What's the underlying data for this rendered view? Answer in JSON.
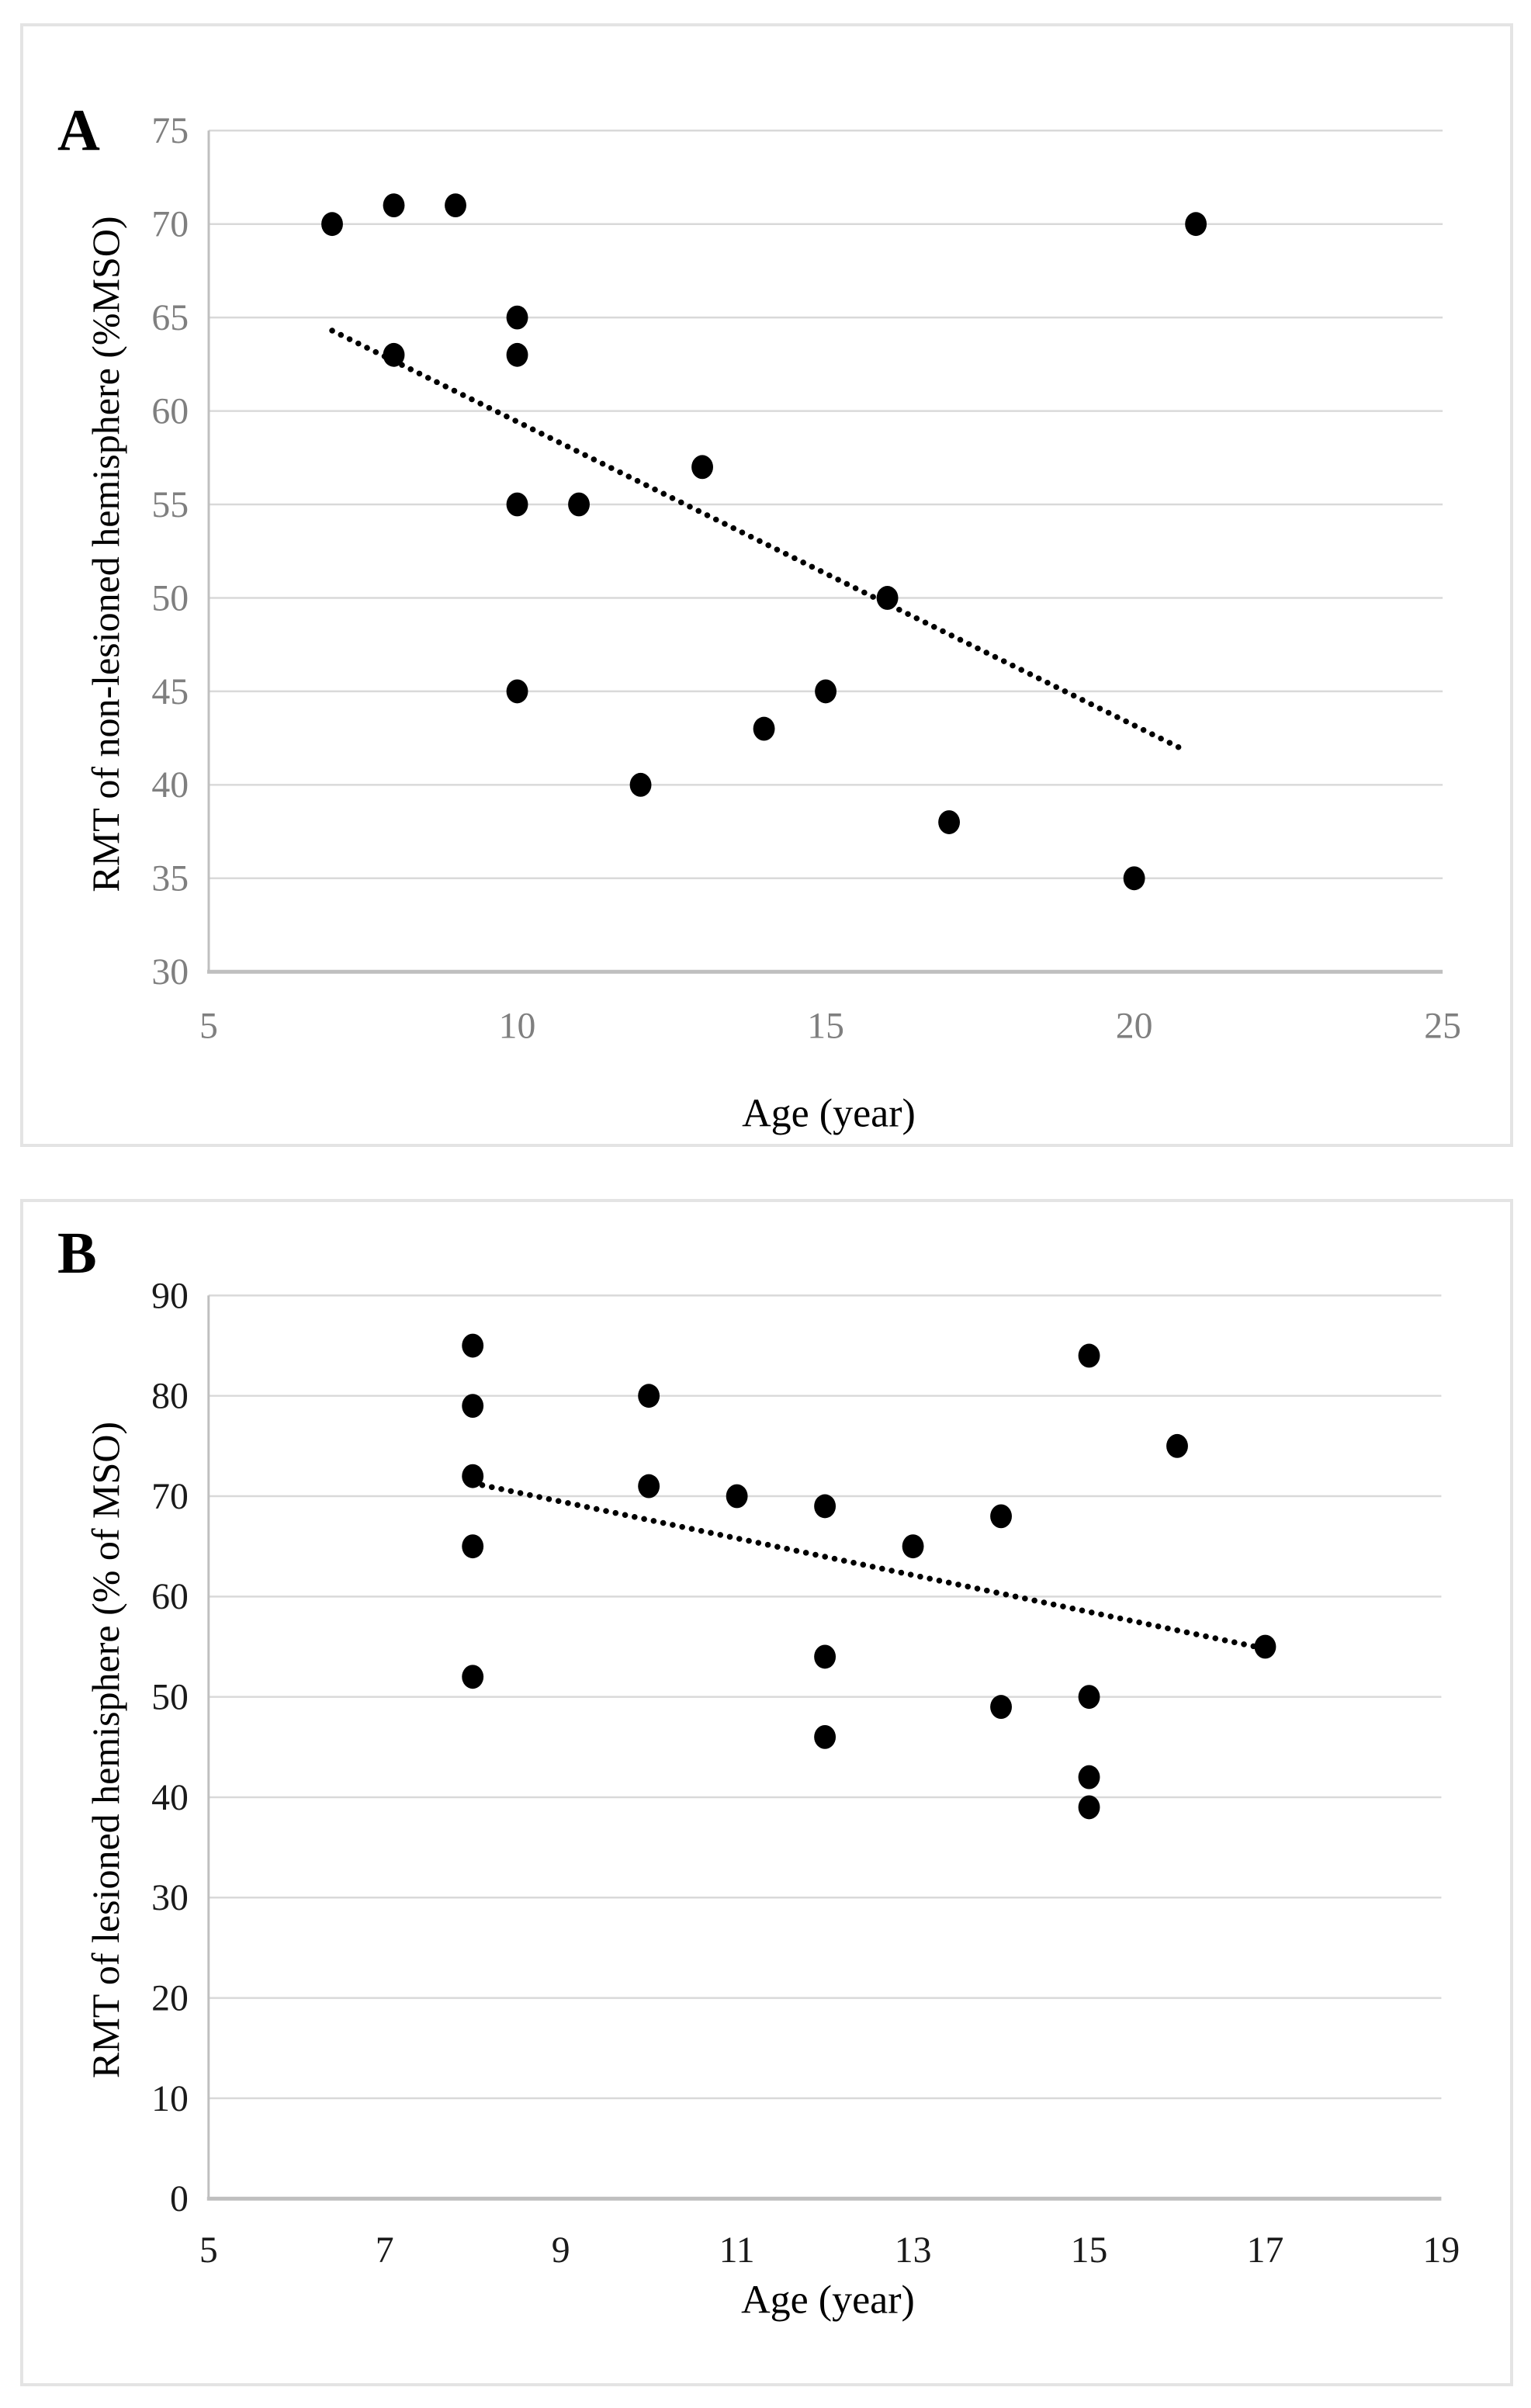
{
  "figure": {
    "background": "#ffffff",
    "panel_border_color": "#e4e4e4",
    "gridline_color": "#d9d9d9",
    "axis_line_color": "#bfbfbf",
    "marker_color": "#000000",
    "trendline_color": "#000000"
  },
  "chart_data": [
    {
      "type": "scatter",
      "panel_label": "A",
      "xlabel": "Age (year)",
      "ylabel": "RMT of non-lesioned hemisphere (%MSO)",
      "xlim": [
        5,
        25
      ],
      "ylim": [
        30,
        75
      ],
      "x_ticks": [
        5,
        10,
        15,
        20,
        25
      ],
      "y_ticks": [
        30,
        35,
        40,
        45,
        50,
        55,
        60,
        65,
        70,
        75
      ],
      "grid": true,
      "legend": "none",
      "tick_color": "#7f7f7f",
      "points": [
        [
          7,
          70
        ],
        [
          8,
          71
        ],
        [
          9,
          71
        ],
        [
          8,
          63
        ],
        [
          10,
          65
        ],
        [
          10,
          63
        ],
        [
          10,
          55
        ],
        [
          11,
          55
        ],
        [
          10,
          45
        ],
        [
          12,
          40
        ],
        [
          13,
          57
        ],
        [
          14,
          43
        ],
        [
          15,
          45
        ],
        [
          16,
          50
        ],
        [
          17,
          38
        ],
        [
          20,
          35
        ],
        [
          21,
          70
        ]
      ],
      "trendline": {
        "style": "dotted",
        "x": [
          7.0,
          20.85
        ],
        "y": [
          64.3,
          41.8
        ]
      }
    },
    {
      "type": "scatter",
      "panel_label": "B",
      "xlabel": "Age (year)",
      "ylabel": "RMT of lesioned hemisphere (% of MSO)",
      "xlim": [
        5,
        19
      ],
      "ylim": [
        0,
        90
      ],
      "x_ticks": [
        5,
        7,
        9,
        11,
        13,
        15,
        17,
        19
      ],
      "y_ticks": [
        0,
        10,
        20,
        30,
        40,
        50,
        60,
        70,
        80,
        90
      ],
      "grid": true,
      "legend": "none",
      "tick_color": "#1a1a1a",
      "points": [
        [
          8,
          85
        ],
        [
          8,
          79
        ],
        [
          8,
          72
        ],
        [
          8,
          65
        ],
        [
          8,
          52
        ],
        [
          10,
          80
        ],
        [
          10,
          71
        ],
        [
          11,
          70
        ],
        [
          12,
          69
        ],
        [
          12,
          54
        ],
        [
          12,
          46
        ],
        [
          13,
          65
        ],
        [
          14,
          68
        ],
        [
          14,
          49
        ],
        [
          15,
          84
        ],
        [
          15,
          50
        ],
        [
          15,
          42
        ],
        [
          15,
          39
        ],
        [
          16,
          75
        ],
        [
          17,
          55
        ]
      ],
      "trendline": {
        "style": "dotted",
        "x": [
          8.0,
          17.0
        ],
        "y": [
          71.3,
          54.8
        ]
      }
    }
  ]
}
